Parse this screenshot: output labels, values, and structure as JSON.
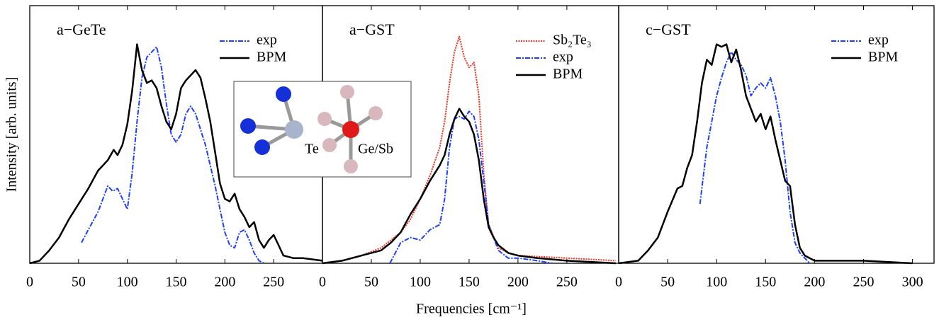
{
  "figure": {
    "xlabel": "Frequencies [cm⁻¹]",
    "ylabel": "Intensity [arb. units]"
  },
  "inset": {
    "labels": [
      "Te",
      "Ge/Sb"
    ]
  },
  "chart_data": [
    {
      "type": "line",
      "title": "a−GeTe",
      "xlim": [
        0,
        300
      ],
      "xticks": [
        0,
        50,
        100,
        150,
        200,
        250
      ],
      "ylim": [
        0,
        1
      ],
      "legend": "upper right",
      "series": [
        {
          "name": "exp",
          "color": "#1f3fff",
          "linestyle": "dashdot",
          "x": [
            53,
            60,
            70,
            80,
            85,
            90,
            95,
            100,
            105,
            110,
            115,
            120,
            125,
            130,
            135,
            140,
            145,
            150,
            155,
            160,
            165,
            170,
            175,
            180,
            185,
            190,
            195,
            200,
            205,
            210,
            215,
            220,
            225,
            230,
            235,
            240
          ],
          "values": [
            0.08,
            0.13,
            0.2,
            0.3,
            0.28,
            0.29,
            0.25,
            0.21,
            0.35,
            0.55,
            0.72,
            0.8,
            0.82,
            0.84,
            0.76,
            0.62,
            0.5,
            0.47,
            0.5,
            0.58,
            0.61,
            0.58,
            0.52,
            0.46,
            0.38,
            0.3,
            0.21,
            0.12,
            0.07,
            0.06,
            0.12,
            0.13,
            0.09,
            0.04,
            0.01,
            0
          ]
        },
        {
          "name": "BPM",
          "color": "#000000",
          "linestyle": "solid",
          "x": [
            0,
            10,
            20,
            30,
            40,
            50,
            60,
            70,
            80,
            86,
            90,
            95,
            100,
            105,
            110,
            115,
            120,
            125,
            130,
            135,
            140,
            145,
            150,
            155,
            160,
            165,
            170,
            175,
            180,
            185,
            190,
            195,
            200,
            205,
            210,
            215,
            220,
            225,
            230,
            235,
            240,
            245,
            250,
            255,
            260,
            270,
            280,
            300
          ],
          "values": [
            0,
            0.01,
            0.05,
            0.1,
            0.17,
            0.23,
            0.29,
            0.36,
            0.4,
            0.44,
            0.42,
            0.46,
            0.54,
            0.67,
            0.85,
            0.75,
            0.7,
            0.71,
            0.68,
            0.61,
            0.55,
            0.52,
            0.58,
            0.68,
            0.71,
            0.73,
            0.75,
            0.72,
            0.64,
            0.55,
            0.43,
            0.31,
            0.25,
            0.24,
            0.27,
            0.21,
            0.18,
            0.14,
            0.16,
            0.09,
            0.06,
            0.09,
            0.11,
            0.07,
            0.03,
            0.02,
            0.02,
            0.01
          ]
        }
      ]
    },
    {
      "type": "line",
      "title": "a−GST",
      "xlim": [
        0,
        303
      ],
      "xticks": [
        0,
        50,
        100,
        150,
        200,
        250
      ],
      "ylim": [
        0,
        1
      ],
      "legend": "upper right",
      "series": [
        {
          "name": "Sb₂Te₃",
          "color": "#ff3020",
          "linestyle": "dotted",
          "x": [
            0,
            20,
            40,
            60,
            80,
            90,
            100,
            110,
            120,
            125,
            130,
            135,
            140,
            145,
            150,
            155,
            160,
            165,
            170,
            180,
            190,
            200,
            250,
            300
          ],
          "values": [
            0,
            0.01,
            0.03,
            0.06,
            0.12,
            0.17,
            0.25,
            0.34,
            0.45,
            0.55,
            0.7,
            0.82,
            0.88,
            0.8,
            0.76,
            0.78,
            0.65,
            0.35,
            0.15,
            0.06,
            0.04,
            0.03,
            0.02,
            0.01
          ]
        },
        {
          "name": "exp",
          "color": "#1f3fff",
          "linestyle": "dashdot",
          "x": [
            69,
            80,
            90,
            100,
            110,
            120,
            125,
            130,
            135,
            140,
            145,
            150,
            155,
            160,
            165,
            170,
            180,
            190,
            200,
            220,
            235
          ],
          "values": [
            0,
            0.08,
            0.1,
            0.09,
            0.13,
            0.15,
            0.25,
            0.45,
            0.56,
            0.57,
            0.56,
            0.59,
            0.57,
            0.48,
            0.32,
            0.15,
            0.05,
            0.02,
            0.02,
            0.01,
            0
          ]
        },
        {
          "name": "BPM",
          "color": "#000000",
          "linestyle": "solid",
          "x": [
            0,
            20,
            40,
            60,
            70,
            80,
            90,
            100,
            110,
            120,
            125,
            130,
            135,
            140,
            145,
            150,
            155,
            160,
            165,
            170,
            175,
            180,
            190,
            200,
            220,
            250,
            300
          ],
          "values": [
            0,
            0.01,
            0.03,
            0.05,
            0.08,
            0.12,
            0.19,
            0.25,
            0.32,
            0.38,
            0.42,
            0.5,
            0.56,
            0.6,
            0.57,
            0.55,
            0.5,
            0.4,
            0.25,
            0.14,
            0.1,
            0.07,
            0.04,
            0.03,
            0.02,
            0.01,
            0
          ]
        }
      ]
    },
    {
      "type": "line",
      "title": "c−GST",
      "xlim": [
        0,
        322
      ],
      "xticks": [
        0,
        50,
        100,
        150,
        200,
        250,
        300
      ],
      "ylim": [
        0,
        1
      ],
      "legend": "upper right",
      "series": [
        {
          "name": "exp",
          "color": "#1f3fff",
          "linestyle": "dashdot",
          "x": [
            83,
            90,
            95,
            100,
            105,
            110,
            115,
            120,
            125,
            130,
            135,
            140,
            145,
            150,
            155,
            160,
            165,
            170,
            175,
            180,
            185,
            190,
            195
          ],
          "values": [
            0.23,
            0.45,
            0.55,
            0.65,
            0.72,
            0.78,
            0.82,
            0.79,
            0.77,
            0.73,
            0.65,
            0.68,
            0.7,
            0.68,
            0.72,
            0.65,
            0.55,
            0.4,
            0.2,
            0.08,
            0.04,
            0.02,
            0
          ]
        },
        {
          "name": "BPM",
          "color": "#000000",
          "linestyle": "solid",
          "x": [
            0,
            20,
            30,
            40,
            50,
            60,
            65,
            70,
            75,
            80,
            85,
            90,
            95,
            100,
            105,
            110,
            115,
            120,
            125,
            130,
            135,
            140,
            145,
            150,
            155,
            160,
            165,
            170,
            175,
            180,
            185,
            190,
            200,
            250,
            300
          ],
          "values": [
            0,
            0.01,
            0.05,
            0.1,
            0.2,
            0.29,
            0.3,
            0.37,
            0.42,
            0.55,
            0.7,
            0.79,
            0.77,
            0.85,
            0.84,
            0.85,
            0.78,
            0.83,
            0.75,
            0.65,
            0.6,
            0.55,
            0.58,
            0.52,
            0.57,
            0.48,
            0.4,
            0.32,
            0.3,
            0.15,
            0.06,
            0.03,
            0.01,
            0.01,
            0
          ]
        }
      ]
    }
  ]
}
